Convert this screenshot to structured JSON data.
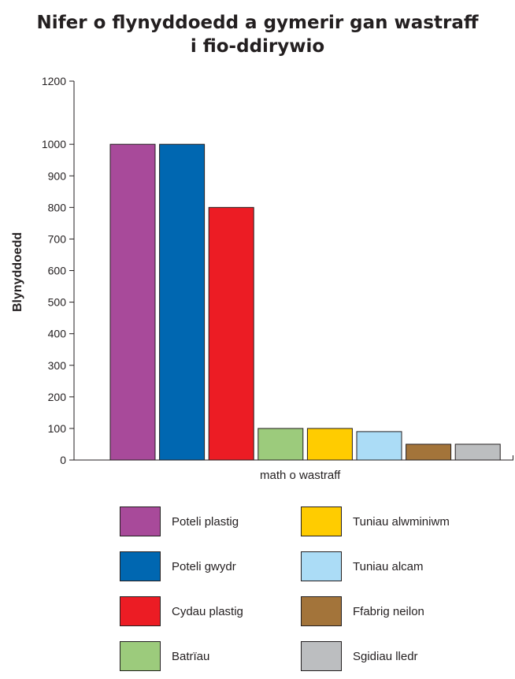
{
  "chart_data": {
    "type": "bar",
    "title_lines": [
      "Nifer o flynyddoedd a gymerir gan wastraff",
      "i fio-ddirywio"
    ],
    "xlabel": "math o wastraff",
    "ylabel": "Blynyddoedd",
    "ylim": [
      0,
      1200
    ],
    "yticks": [
      0,
      100,
      200,
      300,
      400,
      500,
      600,
      700,
      800,
      900,
      1000,
      1200
    ],
    "grid": false,
    "legend_placement": "bottom",
    "categories": [
      "Poteli plastig",
      "Poteli gwydr",
      "Cydau plastig",
      "Batrïau",
      "Tuniau alwminiwm",
      "Tuniau alcam",
      "Ffabrig neilon",
      "Sgidiau lledr"
    ],
    "values": [
      1000,
      1000,
      800,
      100,
      100,
      90,
      50,
      50
    ],
    "colors": [
      "#a84a9a",
      "#0067b1",
      "#ec1c24",
      "#9ccb7c",
      "#ffcc00",
      "#abdcf6",
      "#a3743a",
      "#bcbec0"
    ]
  },
  "legend": {
    "items": [
      {
        "label": "Poteli plastig",
        "color": "#a84a9a"
      },
      {
        "label": "Poteli gwydr",
        "color": "#0067b1"
      },
      {
        "label": "Cydau plastig",
        "color": "#ec1c24"
      },
      {
        "label": "Batrïau",
        "color": "#9ccb7c"
      },
      {
        "label": "Tuniau alwminiwm",
        "color": "#ffcc00"
      },
      {
        "label": "Tuniau alcam",
        "color": "#abdcf6"
      },
      {
        "label": "Ffabrig neilon",
        "color": "#a3743a"
      },
      {
        "label": "Sgidiau lledr",
        "color": "#bcbec0"
      }
    ]
  }
}
